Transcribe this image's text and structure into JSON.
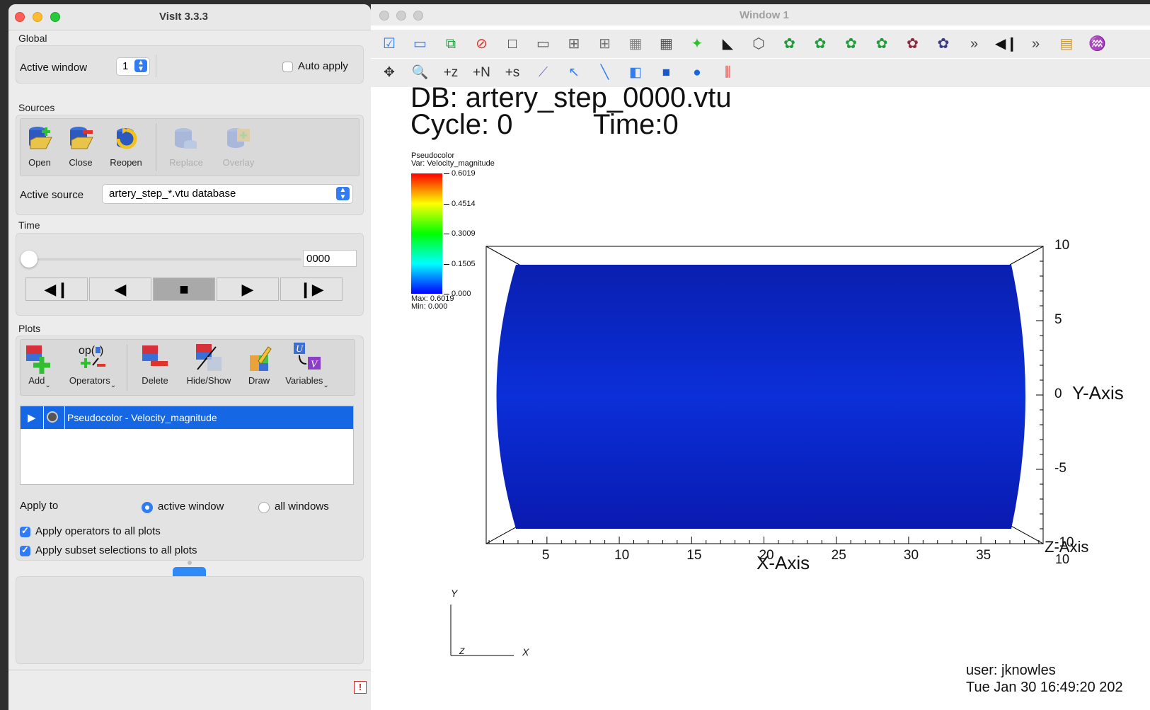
{
  "control": {
    "title": "VisIt 3.3.3",
    "global": {
      "label": "Global",
      "active_window_label": "Active window",
      "active_window_value": "1",
      "auto_apply_label": "Auto apply",
      "auto_apply_checked": false
    },
    "sources": {
      "label": "Sources",
      "tools": [
        {
          "label": "Open",
          "icon": "open-database-icon",
          "enabled": true
        },
        {
          "label": "Close",
          "icon": "close-database-icon",
          "enabled": true
        },
        {
          "label": "Reopen",
          "icon": "reopen-database-icon",
          "enabled": true
        },
        {
          "label": "Replace",
          "icon": "replace-database-icon",
          "enabled": false
        },
        {
          "label": "Overlay",
          "icon": "overlay-database-icon",
          "enabled": false
        }
      ],
      "active_source_label": "Active source",
      "active_source_value": "artery_step_*.vtu database"
    },
    "time": {
      "label": "Time",
      "value": "0000",
      "controls": [
        "step-back-icon",
        "play-reverse-icon",
        "stop-icon",
        "play-icon",
        "step-forward-icon"
      ]
    },
    "plots": {
      "label": "Plots",
      "tools": [
        {
          "label": "Add",
          "icon": "add-plot-icon",
          "menu": true
        },
        {
          "label": "Operators",
          "icon": "operators-icon",
          "menu": true
        },
        {
          "label": "Delete",
          "icon": "delete-plot-icon",
          "menu": false
        },
        {
          "label": "Hide/Show",
          "icon": "hide-show-icon",
          "menu": false
        },
        {
          "label": "Draw",
          "icon": "draw-icon",
          "menu": false
        },
        {
          "label": "Variables",
          "icon": "variables-icon",
          "menu": true
        }
      ],
      "list": [
        {
          "label": "Pseudocolor - Velocity_magnitude",
          "selected": true
        }
      ],
      "apply_to_label": "Apply to",
      "apply_active": "active window",
      "apply_all": "all windows",
      "apply_operators": "Apply operators to all plots",
      "apply_subset": "Apply subset selections to all plots"
    }
  },
  "viewer": {
    "title": "Window 1",
    "toolbar_row1": [
      "active-window-icon",
      "new-window-icon",
      "clone-window-icon",
      "delete-window-icon",
      "layout-1x1-icon",
      "layout-1x2-icon",
      "layout-2x2-icon",
      "layout-2x3-icon",
      "layout-2x4-icon",
      "layout-3x3-icon",
      "pick-icon",
      "lock-view-icon",
      "perspective-icon",
      "reset-view-icon",
      "recenter-view-icon",
      "undo-view-icon",
      "redo-view-icon",
      "spin-icon",
      "save-image-icon",
      "more-icon",
      "step-back-icon",
      "more-icon",
      "color-table-icon",
      "lighting-icon"
    ],
    "toolbar_row2": [
      "navigate-icon",
      "zoom-icon",
      "zone-pick-icon",
      "node-pick-icon",
      "spreadsheet-pick-icon",
      "lineout-icon",
      "point-tool-icon",
      "line-tool-icon",
      "plane-tool-icon",
      "box-tool-icon",
      "sphere-tool-icon",
      "axis-restriction-icon"
    ],
    "db_line": "DB: artery_step_0000.vtu",
    "cycle_line": "Cycle: 0",
    "time_line": "Time:0",
    "legend": {
      "title": "Pseudocolor",
      "var": "Var: Velocity_magnitude",
      "ticks": [
        "0.6019",
        "0.4514",
        "0.3009",
        "0.1505",
        "0.000"
      ],
      "max": "Max:  0.6019",
      "min": "Min:  0.000"
    },
    "axes": {
      "x_title": "X-Axis",
      "y_title": "Y-Axis",
      "z_title": "Z-Axis",
      "x_ticks": [
        "5",
        "10",
        "15",
        "20",
        "25",
        "30",
        "35"
      ],
      "y_ticks": [
        "10",
        "5",
        "0",
        "-5",
        "-10"
      ],
      "z_tick": "10"
    },
    "triad": {
      "y": "Y",
      "x": "X",
      "z": "Z"
    },
    "user_line": "user: jknowles",
    "date_line": "Tue Jan 30 16:49:20 202"
  }
}
